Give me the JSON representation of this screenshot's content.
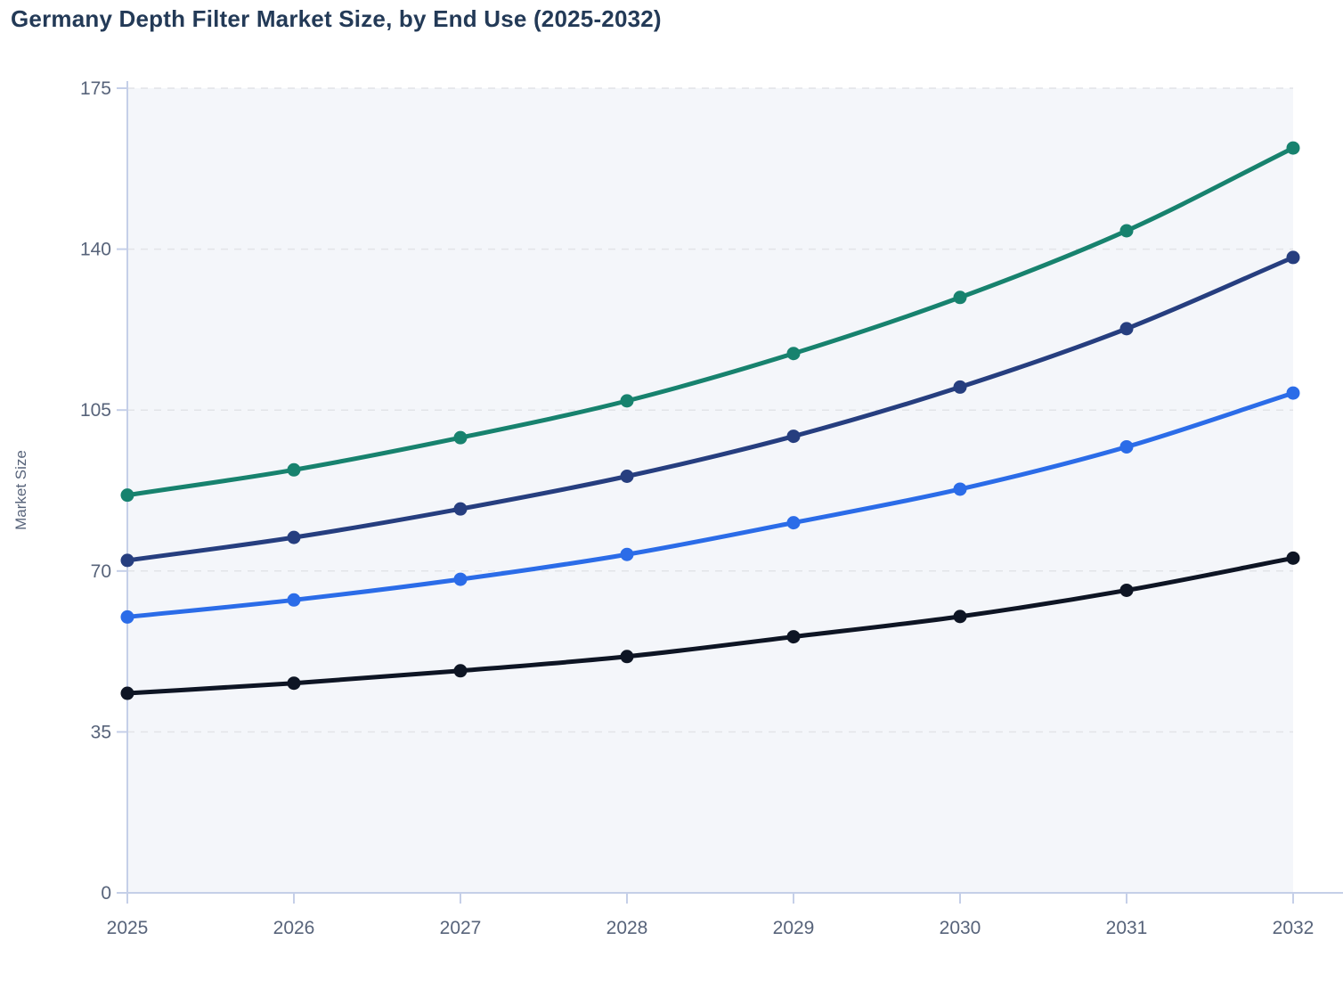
{
  "chart": {
    "title": "Germany Depth Filter Market Size, by End Use (2025-2032)",
    "ylabel": "Market Size"
  },
  "theme": {
    "title_color": "#233a57",
    "tick_label_color": "#57637a",
    "axis_line_color": "#c5cfe8",
    "grid_color": "#e2e4e8",
    "plot_bg": "#f4f6fa",
    "page_bg": "#ffffff"
  },
  "chart_data": {
    "type": "line",
    "title": "Germany Depth Filter Market Size, by End Use (2025-2032)",
    "xlabel": "",
    "ylabel": "Market Size",
    "x": [
      2025,
      2026,
      2027,
      2028,
      2029,
      2030,
      2031,
      2032
    ],
    "y_ticks": [
      0,
      35,
      70,
      105,
      140,
      175
    ],
    "ylim": [
      0,
      175
    ],
    "grid": true,
    "gridline_style": "dashed",
    "legend_position": "none",
    "curve": "smooth",
    "marker": "circle",
    "series": [
      {
        "name": "series-teal",
        "color": "#17826e",
        "values": [
          86.5,
          92.0,
          99.0,
          107.0,
          117.3,
          129.5,
          144.0,
          162.0
        ]
      },
      {
        "name": "series-navy",
        "color": "#263e7f",
        "values": [
          72.3,
          77.3,
          83.5,
          90.6,
          99.3,
          110.0,
          122.7,
          138.2
        ]
      },
      {
        "name": "series-blue",
        "color": "#2b6ce8",
        "values": [
          60.0,
          63.7,
          68.2,
          73.6,
          80.5,
          87.8,
          97.0,
          108.7
        ]
      },
      {
        "name": "series-black",
        "color": "#0e1524",
        "values": [
          43.4,
          45.6,
          48.3,
          51.4,
          55.7,
          60.1,
          65.8,
          72.8
        ]
      }
    ]
  }
}
